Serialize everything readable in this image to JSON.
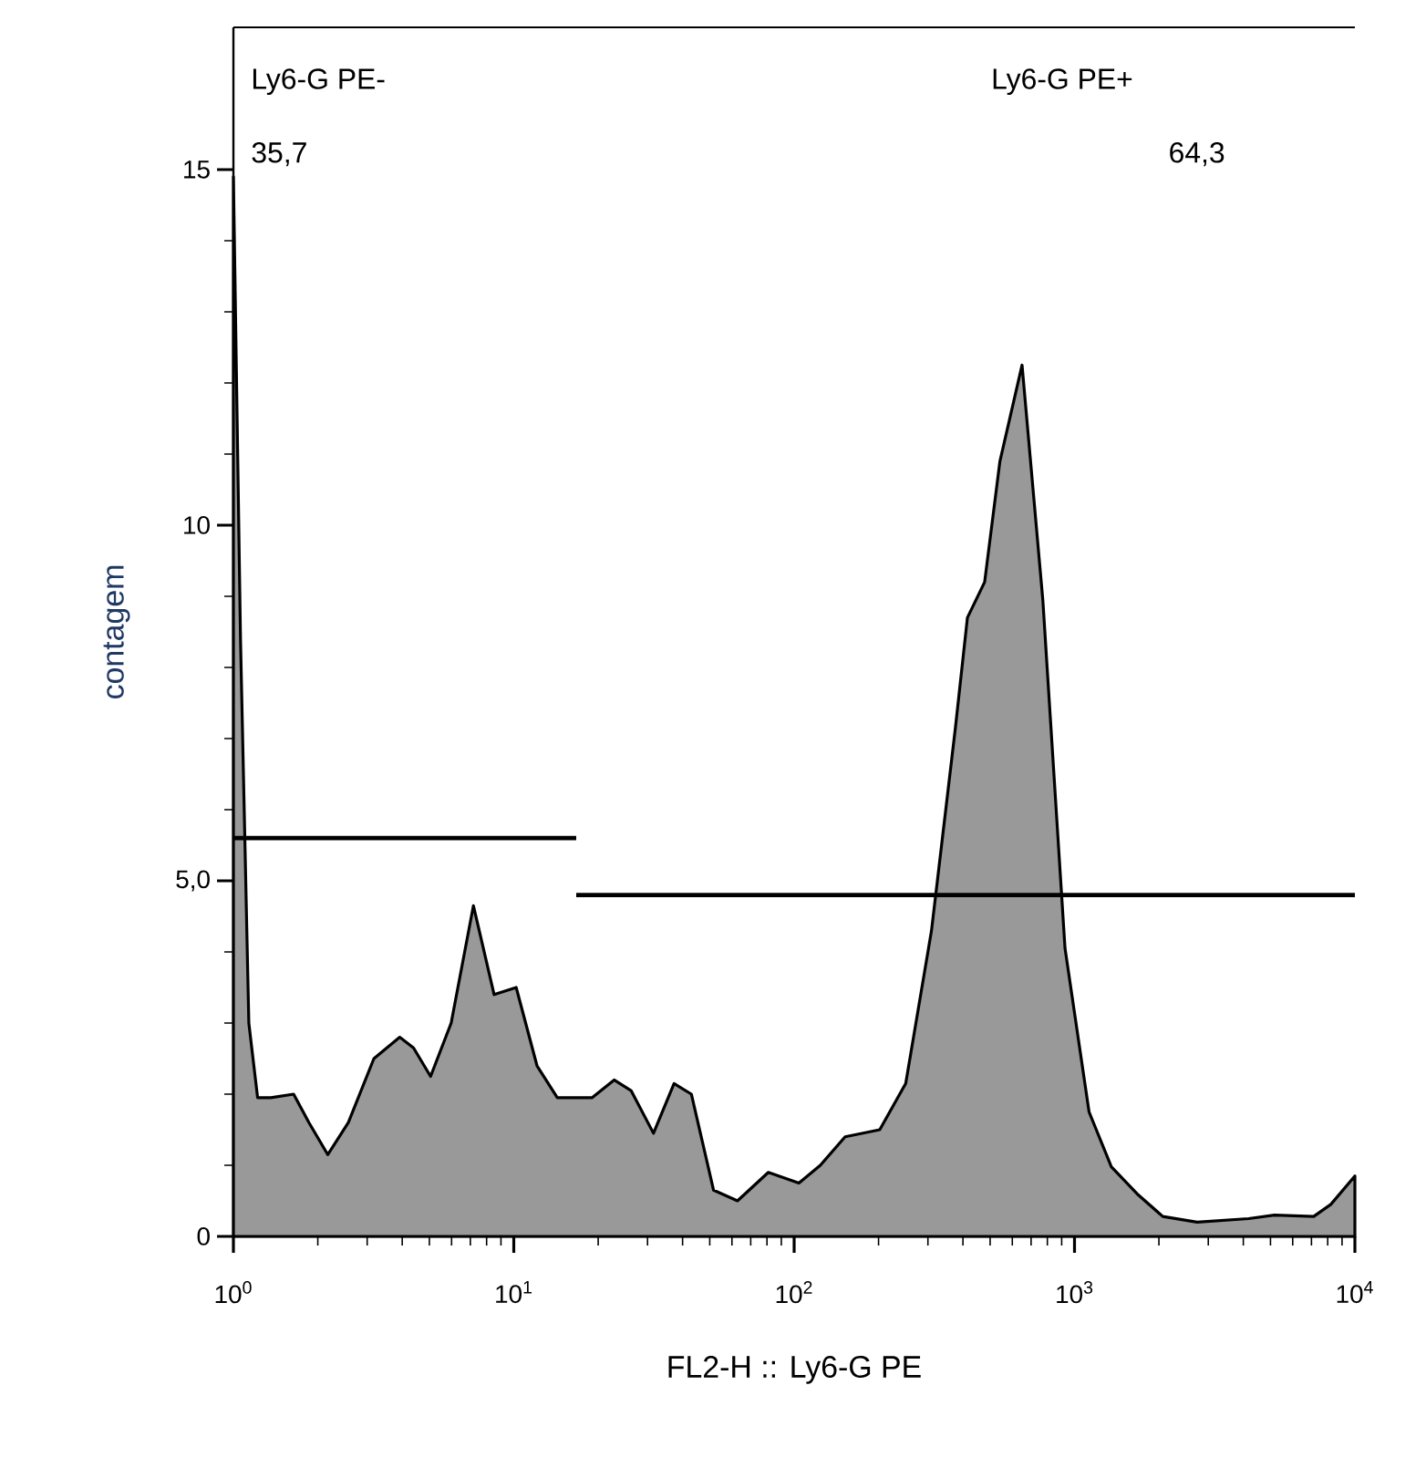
{
  "chart_data": {
    "type": "area",
    "xlabel": "FL2-H :: Ly6-G PE",
    "ylabel": "contagem",
    "log": "x",
    "grid": false,
    "xlim": [
      1,
      10000
    ],
    "ylim": [
      0,
      17
    ],
    "xticks": [
      {
        "value": 1,
        "label": "10$^{0}$"
      },
      {
        "value": 10,
        "label": "10$^{1}$"
      },
      {
        "value": 100,
        "label": "10$^{2}$"
      },
      {
        "value": 1000,
        "label": "10$^{3}$"
      },
      {
        "value": 10000,
        "label": "10$^{4}$"
      }
    ],
    "yticks": [
      0,
      {
        "value": 5,
        "label": "5,0"
      },
      10,
      15
    ],
    "series": [
      {
        "color": "#999999",
        "x": [
          1.0,
          1.06,
          1.135,
          1.22,
          1.36,
          1.64,
          1.86,
          2.17,
          2.57,
          3.17,
          3.92,
          4.39,
          5.05,
          5.98,
          7.18,
          8.51,
          10.2,
          12.1,
          14.3,
          19.0,
          22.8,
          26.2,
          31.5,
          37.3,
          43.0,
          51.6,
          62.8,
          80.9,
          104,
          124,
          152,
          202,
          250,
          309,
          376,
          415,
          478,
          542,
          650,
          771,
          925,
          1127,
          1353,
          1671,
          2064,
          2737,
          4177,
          5164,
          7132,
          8209,
          10000
        ],
        "values": [
          14.9,
          8.4,
          3.0,
          1.95,
          1.95,
          2.0,
          1.6,
          1.15,
          1.6,
          2.5,
          2.8,
          2.65,
          2.25,
          3.0,
          4.65,
          3.4,
          3.5,
          2.4,
          1.95,
          1.95,
          2.2,
          2.05,
          1.45,
          2.15,
          2.0,
          0.65,
          0.5,
          0.9,
          0.75,
          1.0,
          1.4,
          1.5,
          2.15,
          4.3,
          7.15,
          8.7,
          9.2,
          10.9,
          12.25,
          8.95,
          4.05,
          1.75,
          0.98,
          0.6,
          0.28,
          0.2,
          0.25,
          0.3,
          0.28,
          0.45,
          0.85
        ]
      },
      {
        "type": "line",
        "color": "#000000",
        "x": [
          1,
          16.7
        ],
        "values": [
          5.6,
          5.6
        ]
      },
      {
        "type": "line",
        "color": "#000000",
        "x": [
          16.7,
          10000
        ],
        "values": [
          4.8,
          4.8
        ]
      }
    ],
    "annotations": [
      "Ly6-G PE-",
      "35,7",
      "Ly6-G PE+",
      "64,3"
    ]
  }
}
